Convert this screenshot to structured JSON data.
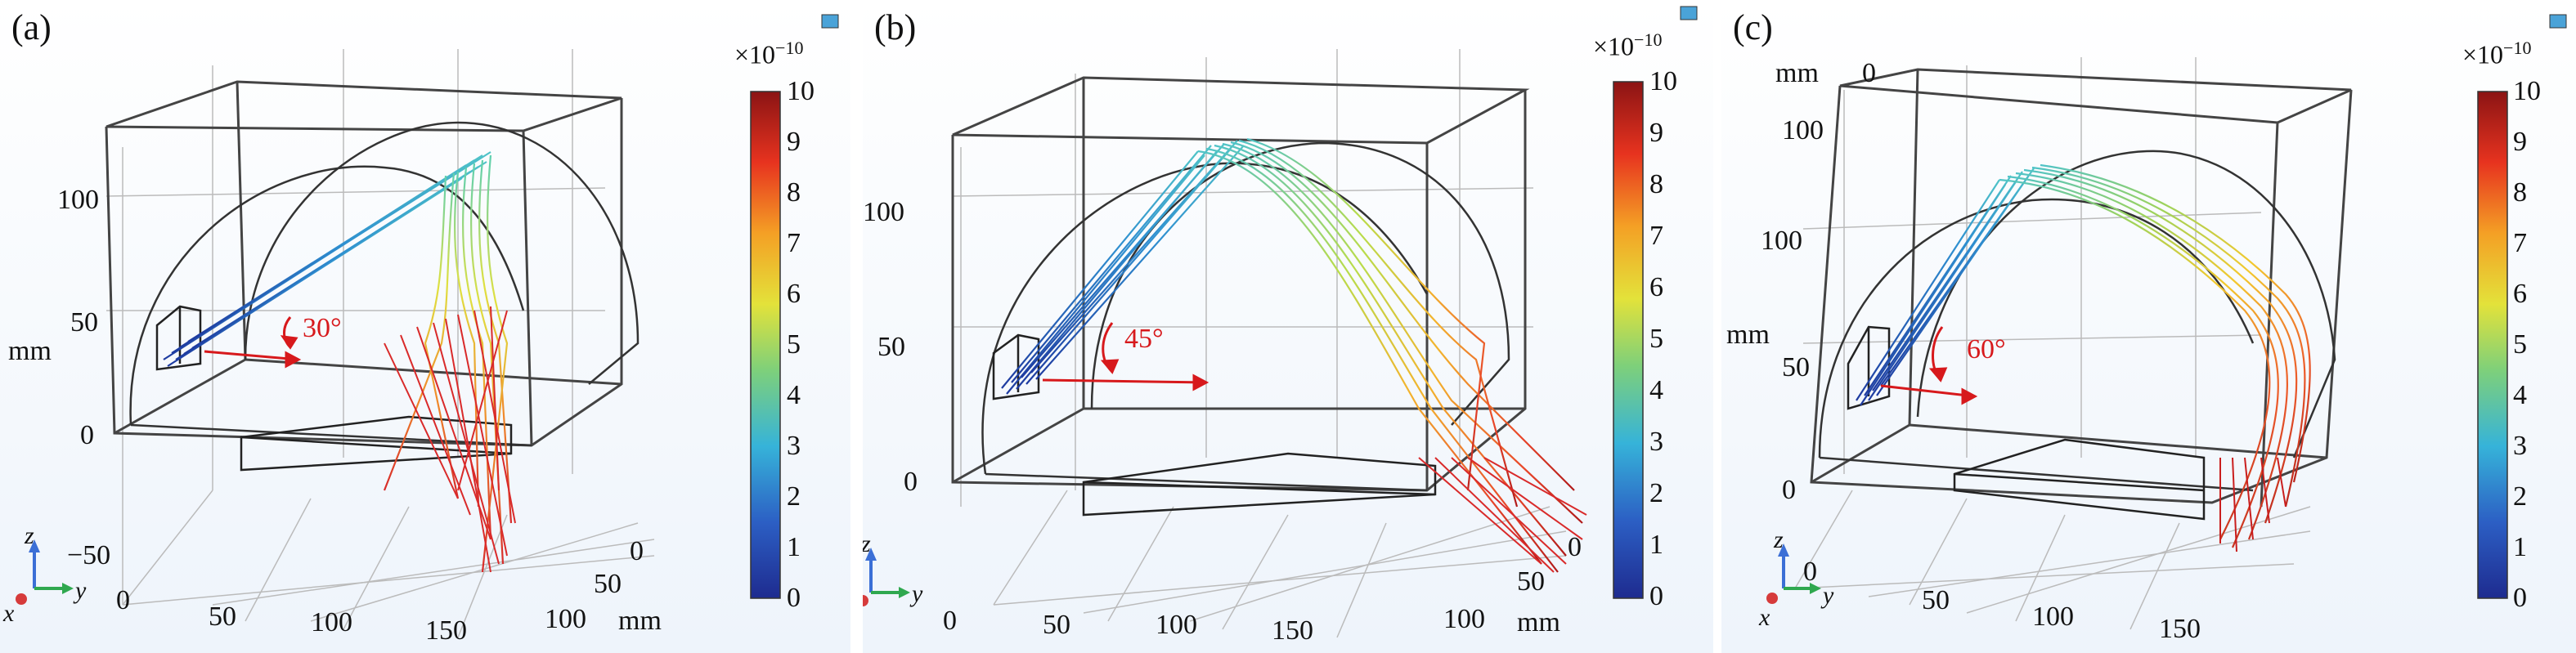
{
  "panels": [
    {
      "label": "(a)",
      "angle_label": "30°",
      "z_ticks": [
        "100",
        "50",
        "0"
      ],
      "z_unit": "mm",
      "y_ticks": [
        "0",
        "50",
        "100",
        "150"
      ],
      "x_ticks": [
        "−50",
        "0",
        "50",
        "100"
      ],
      "xy_unit": "mm",
      "cbar_title": "×10",
      "cbar_exp": "−10",
      "cbar_ticks": [
        "10",
        "9",
        "8",
        "7",
        "6",
        "5",
        "4",
        "3",
        "2",
        "1",
        "0"
      ],
      "triad": {
        "z": "z",
        "y": "y",
        "x": "x"
      }
    },
    {
      "label": "(b)",
      "angle_label": "45°",
      "z_ticks": [
        "100",
        "50",
        "0"
      ],
      "z_unit": "",
      "y_ticks": [
        "0",
        "50",
        "100",
        "150"
      ],
      "x_ticks": [
        "0",
        "50",
        "100"
      ],
      "xy_unit": "mm",
      "cbar_title": "×10",
      "cbar_exp": "−10",
      "cbar_ticks": [
        "10",
        "9",
        "8",
        "7",
        "6",
        "5",
        "4",
        "3",
        "2",
        "1",
        "0"
      ],
      "triad": {
        "z": "z",
        "y": "y",
        "x": "x"
      }
    },
    {
      "label": "(c)",
      "angle_label": "60°",
      "z_ticks": [
        "100",
        "100",
        "50",
        "0"
      ],
      "z_unit_top": "mm",
      "z_top_tick": "0",
      "z_unit": "mm",
      "y_ticks": [
        "0",
        "50",
        "100",
        "150"
      ],
      "cbar_title": "×10",
      "cbar_exp": "−10",
      "cbar_ticks": [
        "10",
        "9",
        "8",
        "7",
        "6",
        "5",
        "4",
        "3",
        "2",
        "1",
        "0"
      ],
      "triad": {
        "z": "z",
        "y": "y",
        "x": "x"
      }
    }
  ],
  "colors": {
    "frame": "#444444",
    "angle_arrow": "#d7191c",
    "triad_z": "#3b6fd6",
    "triad_y": "#2fa84f",
    "triad_x": "#d63b3b"
  }
}
